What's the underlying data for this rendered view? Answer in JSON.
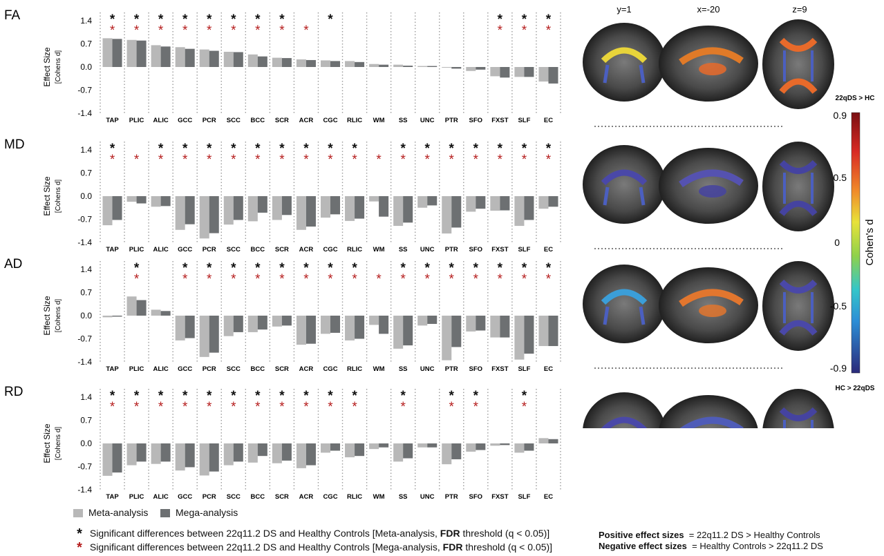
{
  "colors": {
    "meta": "#b8b8b8",
    "mega": "#6d7072",
    "star_meta": "#111111",
    "star_mega": "#b51c1c"
  },
  "ylabel": "Effect Size",
  "ylabel_sub": "[Cohens d]",
  "legend": {
    "meta": "Meta-analysis",
    "mega": "Mega-analysis"
  },
  "significance": {
    "meta": {
      "prefix": "Significant differences between 22q11.2 DS and Healthy Controls [Meta-analysis, ",
      "bold": "FDR",
      "suffix": " threshold (q < 0.05)]"
    },
    "mega": {
      "prefix": "Significant differences between 22q11.2 DS and Healthy Controls [Mega-analysis, ",
      "bold": "FDR",
      "suffix": " threshold (q < 0.05)]"
    }
  },
  "slices": [
    "y=1",
    "x=-20",
    "z=9"
  ],
  "colorbar": {
    "title": "Cohen's d",
    "top_label": "22qDS > HC",
    "bottom_label": "HC > 22qDS",
    "ticks": [
      "0.9",
      "0.5",
      "0",
      "-0.5",
      "-0.9"
    ]
  },
  "footnote": {
    "positive_label": "Positive effect sizes",
    "positive_text": "= 22q11.2 DS > Healthy Controls",
    "negative_label": "Negative effect sizes",
    "negative_text": "= Healthy Controls > 22q11.2 DS"
  },
  "chart_data": [
    {
      "type": "bar",
      "title": "FA",
      "ylim": [
        -1.4,
        1.4
      ],
      "yticks": [
        "1.4",
        "0.7",
        "0.0",
        "-0.7",
        "-1.4"
      ],
      "categories": [
        "TAP",
        "PLIC",
        "ALIC",
        "GCC",
        "PCR",
        "SCC",
        "BCC",
        "SCR",
        "ACR",
        "CGC",
        "RLIC",
        "WM",
        "SS",
        "UNC",
        "PTR",
        "SFO",
        "FXST",
        "SLF",
        "EC"
      ],
      "series": [
        {
          "name": "Meta-analysis",
          "values": [
            0.87,
            0.82,
            0.66,
            0.6,
            0.53,
            0.46,
            0.38,
            0.28,
            0.23,
            0.2,
            0.18,
            0.09,
            0.07,
            0.03,
            0.0,
            -0.12,
            -0.28,
            -0.3,
            -0.44
          ]
        },
        {
          "name": "Mega-analysis",
          "values": [
            0.85,
            0.8,
            0.62,
            0.55,
            0.49,
            0.45,
            0.32,
            0.27,
            0.21,
            0.18,
            0.15,
            0.07,
            0.04,
            0.03,
            -0.05,
            -0.08,
            -0.32,
            -0.3,
            -0.5
          ]
        }
      ],
      "sig_meta": [
        1,
        1,
        1,
        1,
        1,
        1,
        1,
        1,
        0,
        1,
        0,
        0,
        0,
        0,
        0,
        0,
        1,
        1,
        1
      ],
      "sig_mega": [
        1,
        1,
        1,
        1,
        1,
        1,
        1,
        1,
        1,
        0,
        0,
        0,
        0,
        0,
        0,
        0,
        1,
        1,
        1
      ]
    },
    {
      "type": "bar",
      "title": "MD",
      "ylim": [
        -1.4,
        1.4
      ],
      "yticks": [
        "1.4",
        "0.7",
        "0.0",
        "-0.7",
        "-1.4"
      ],
      "categories": [
        "TAP",
        "PLIC",
        "ALIC",
        "GCC",
        "PCR",
        "SCC",
        "BCC",
        "SCR",
        "ACR",
        "CGC",
        "RLIC",
        "WM",
        "SS",
        "UNC",
        "PTR",
        "SFO",
        "FXST",
        "SLF",
        "EC"
      ],
      "series": [
        {
          "name": "Meta-analysis",
          "values": [
            -0.88,
            -0.17,
            -0.32,
            -1.02,
            -1.28,
            -0.86,
            -0.76,
            -0.72,
            -1.02,
            -0.65,
            -0.75,
            -0.16,
            -0.9,
            -0.35,
            -1.13,
            -0.47,
            -0.44,
            -0.9,
            -0.38
          ]
        },
        {
          "name": "Mega-analysis",
          "values": [
            -0.72,
            -0.22,
            -0.3,
            -0.85,
            -1.12,
            -0.72,
            -0.5,
            -0.57,
            -0.92,
            -0.55,
            -0.68,
            -0.62,
            -0.8,
            -0.28,
            -0.95,
            -0.38,
            -0.43,
            -0.72,
            -0.32
          ]
        }
      ],
      "sig_meta": [
        1,
        0,
        1,
        1,
        1,
        1,
        1,
        1,
        1,
        1,
        1,
        0,
        1,
        1,
        1,
        1,
        1,
        1,
        1
      ],
      "sig_mega": [
        1,
        1,
        1,
        1,
        1,
        1,
        1,
        1,
        1,
        1,
        1,
        1,
        1,
        1,
        1,
        1,
        1,
        1,
        1
      ]
    },
    {
      "type": "bar",
      "title": "AD",
      "ylim": [
        -1.4,
        1.4
      ],
      "yticks": [
        "1.4",
        "0.7",
        "0.0",
        "-0.7",
        "-1.4"
      ],
      "categories": [
        "TAP",
        "PLIC",
        "ALIC",
        "GCC",
        "PCR",
        "SCC",
        "BCC",
        "SCR",
        "ACR",
        "CGC",
        "RLIC",
        "WM",
        "SS",
        "UNC",
        "PTR",
        "SFO",
        "FXST",
        "SLF",
        "EC"
      ],
      "series": [
        {
          "name": "Meta-analysis",
          "values": [
            -0.05,
            0.58,
            0.18,
            -0.75,
            -1.25,
            -0.62,
            -0.5,
            -0.33,
            -0.88,
            -0.55,
            -0.75,
            -0.28,
            -1.0,
            -0.3,
            -1.35,
            -0.48,
            -0.66,
            -1.33,
            -0.92
          ]
        },
        {
          "name": "Mega-analysis",
          "values": [
            -0.03,
            0.47,
            0.14,
            -0.68,
            -1.12,
            -0.5,
            -0.42,
            -0.3,
            -0.85,
            -0.52,
            -0.7,
            -0.55,
            -0.9,
            -0.25,
            -0.95,
            -0.45,
            -0.66,
            -1.15,
            -0.92
          ]
        }
      ],
      "sig_meta": [
        0,
        1,
        0,
        1,
        1,
        1,
        1,
        1,
        1,
        1,
        1,
        0,
        1,
        1,
        1,
        1,
        1,
        1,
        1
      ],
      "sig_mega": [
        0,
        1,
        0,
        1,
        1,
        1,
        1,
        1,
        1,
        1,
        1,
        1,
        1,
        1,
        1,
        1,
        1,
        1,
        1
      ]
    },
    {
      "type": "bar",
      "title": "RD",
      "ylim": [
        -1.4,
        1.4
      ],
      "yticks": [
        "1.4",
        "0.7",
        "0.0",
        "-0.7",
        "-1.4"
      ],
      "categories": [
        "TAP",
        "PLIC",
        "ALIC",
        "GCC",
        "PCR",
        "SCC",
        "BCC",
        "SCR",
        "ACR",
        "CGC",
        "RLIC",
        "WM",
        "SS",
        "UNC",
        "PTR",
        "SFO",
        "FXST",
        "SLF",
        "EC"
      ],
      "series": [
        {
          "name": "Meta-analysis",
          "values": [
            -0.98,
            -0.66,
            -0.62,
            -0.82,
            -0.97,
            -0.66,
            -0.58,
            -0.6,
            -0.75,
            -0.28,
            -0.42,
            -0.17,
            -0.55,
            -0.12,
            -0.63,
            -0.25,
            -0.07,
            -0.28,
            0.16
          ]
        },
        {
          "name": "Mega-analysis",
          "values": [
            -0.88,
            -0.55,
            -0.55,
            -0.72,
            -0.85,
            -0.55,
            -0.38,
            -0.52,
            -0.66,
            -0.22,
            -0.38,
            -0.12,
            -0.45,
            -0.12,
            -0.48,
            -0.2,
            -0.05,
            -0.22,
            0.13
          ]
        }
      ],
      "sig_meta": [
        1,
        1,
        1,
        1,
        1,
        1,
        1,
        1,
        1,
        1,
        1,
        0,
        1,
        0,
        1,
        1,
        0,
        1,
        0
      ],
      "sig_mega": [
        1,
        1,
        1,
        1,
        1,
        1,
        1,
        1,
        1,
        1,
        1,
        0,
        1,
        0,
        1,
        1,
        0,
        1,
        0
      ]
    }
  ]
}
